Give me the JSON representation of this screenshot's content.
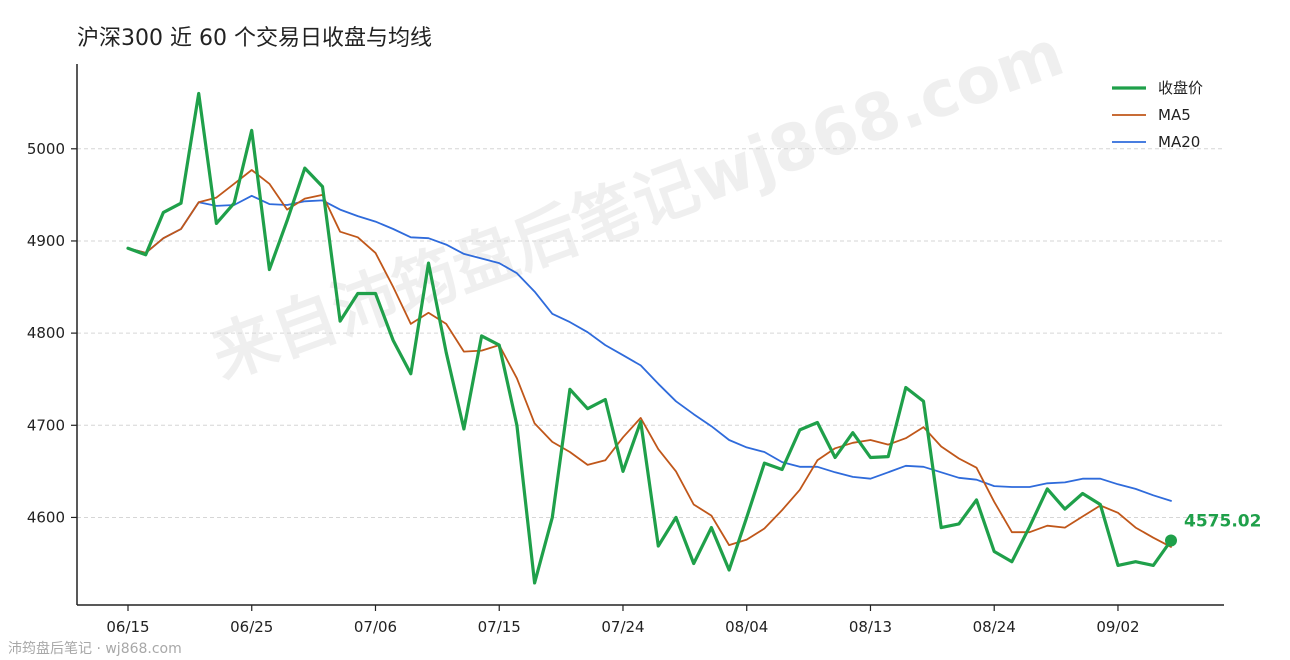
{
  "chart_data": {
    "type": "line",
    "title": "沪深300 近 60 个交易日收盘与均线",
    "xlabel": "",
    "ylabel": "",
    "ylim": [
      4505,
      5092
    ],
    "yticks": [
      4600,
      4700,
      4800,
      4900,
      5000
    ],
    "xtick_labels": [
      "06/15",
      "06/25",
      "07/06",
      "07/15",
      "07/24",
      "08/04",
      "08/13",
      "08/24",
      "09/02"
    ],
    "xtick_index": [
      0,
      7,
      14,
      21,
      28,
      35,
      42,
      49,
      56
    ],
    "n_points": 60,
    "grid": "horizontal dashed",
    "legend_position": "top-right",
    "last_value_label": "4575.02",
    "series": [
      {
        "name": "收盘价",
        "color": "#1fa04a",
        "values": [
          4892,
          4885,
          4931,
          4941,
          5060,
          4919,
          4941,
          5020,
          4869,
          4922,
          4979,
          4959,
          4813,
          4843,
          4843,
          4792,
          4756,
          4876,
          4779,
          4696,
          4797,
          4787,
          4700,
          4529,
          4600,
          4739,
          4718,
          4728,
          4650,
          4704,
          4569,
          4600,
          4550,
          4589,
          4543,
          4600,
          4659,
          4652,
          4695,
          4703,
          4665,
          4692,
          4665,
          4666,
          4741,
          4726,
          4589,
          4593,
          4619,
          4563,
          4552,
          4590,
          4631,
          4609,
          4626,
          4614,
          4548,
          4552,
          4548,
          4575.02
        ]
      },
      {
        "name": "MA5",
        "color": "#c0571a",
        "values": [
          4892,
          4887,
          4903,
          4913,
          4942,
          4947,
          4962,
          4977,
          4962,
          4934,
          4946,
          4950,
          4910,
          4904,
          4887,
          4850,
          4810,
          4822,
          4810,
          4780,
          4781,
          4787,
          4751,
          4702,
          4682,
          4671,
          4657,
          4662,
          4687,
          4708,
          4674,
          4650,
          4614,
          4602,
          4570,
          4576,
          4588,
          4608,
          4630,
          4662,
          4675,
          4681,
          4684,
          4679,
          4686,
          4698,
          4677,
          4664,
          4654,
          4617,
          4584,
          4584,
          4591,
          4589,
          4601,
          4613,
          4605,
          4589,
          4578,
          4568
        ]
      },
      {
        "name": "MA20",
        "color": "#2f6bdb",
        "values": [
          4892,
          4887,
          4903,
          4913,
          4942,
          4938,
          4939,
          4949,
          4940,
          4939,
          4943,
          4944,
          4934,
          4927,
          4921,
          4913,
          4904,
          4903,
          4896,
          4886,
          4881,
          4876,
          4865,
          4845,
          4821,
          4812,
          4801,
          4787,
          4776,
          4765,
          4745,
          4726,
          4712,
          4699,
          4684,
          4676,
          4671,
          4660,
          4655,
          4655,
          4649,
          4644,
          4642,
          4649,
          4656,
          4655,
          4649,
          4643,
          4641,
          4634,
          4633,
          4633,
          4637,
          4638,
          4642,
          4642,
          4636,
          4631,
          4624,
          4618
        ]
      }
    ]
  },
  "watermark": "来自沛筠盘后笔记wj868.com",
  "footer": "沛筠盘后笔记 · wj868.com"
}
